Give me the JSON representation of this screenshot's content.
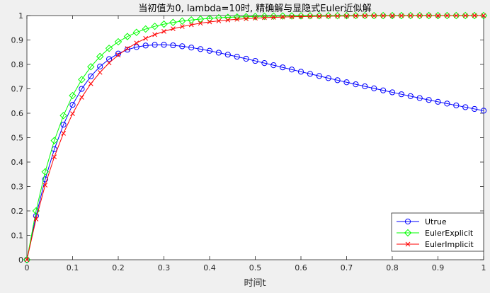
{
  "colors": {
    "figure_bg": "#f0f0f0",
    "axes_bg": "#ffffff",
    "axis_color": "#262626",
    "utrue": "#0000ff",
    "explicit": "#00ff00",
    "implicit": "#ff0000"
  },
  "chart_data": {
    "type": "line",
    "title": "当初值为0, lambda=10时, 精确解与显隐式Euler近似解",
    "xlabel": "时间t",
    "ylabel": "",
    "xlim": [
      0,
      1
    ],
    "ylim": [
      0,
      1
    ],
    "xticks": [
      0,
      0.1,
      0.2,
      0.3,
      0.4,
      0.5,
      0.6,
      0.7,
      0.8,
      0.9,
      1
    ],
    "xtick_labels": [
      "0",
      "0.1",
      "0.2",
      "0.3",
      "0.4",
      "0.5",
      "0.6",
      "0.7",
      "0.8",
      "0.9",
      "1"
    ],
    "yticks": [
      0,
      0.1,
      0.2,
      0.3,
      0.4,
      0.5,
      0.6,
      0.7,
      0.8,
      0.9,
      1
    ],
    "ytick_labels": [
      "0",
      "0.1",
      "0.2",
      "0.3",
      "0.4",
      "0.5",
      "0.6",
      "0.7",
      "0.8",
      "0.9",
      "1"
    ],
    "grid": false,
    "legend_position": "bottom-right",
    "x": [
      0,
      0.02,
      0.04,
      0.06,
      0.08,
      0.1,
      0.12,
      0.14,
      0.16,
      0.18,
      0.2,
      0.22,
      0.24,
      0.26,
      0.28,
      0.3,
      0.32,
      0.34,
      0.36,
      0.38,
      0.4,
      0.42,
      0.44,
      0.46,
      0.48,
      0.5,
      0.52,
      0.54,
      0.56,
      0.58,
      0.6,
      0.62,
      0.64,
      0.66,
      0.68,
      0.7,
      0.72,
      0.74,
      0.76,
      0.78,
      0.8,
      0.82,
      0.84,
      0.86,
      0.88,
      0.9,
      0.92,
      0.94,
      0.96,
      0.98,
      1
    ],
    "series": [
      {
        "name": "Utrue",
        "color": "#0000ff",
        "marker": "circle",
        "values": [
          0,
          0.1798,
          0.3293,
          0.4525,
          0.5531,
          0.6346,
          0.6998,
          0.7513,
          0.7913,
          0.8217,
          0.8442,
          0.8603,
          0.871,
          0.8773,
          0.8802,
          0.8803,
          0.8781,
          0.8743,
          0.869,
          0.8627,
          0.8557,
          0.848,
          0.84,
          0.8316,
          0.8231,
          0.8143,
          0.8055,
          0.7967,
          0.7878,
          0.7789,
          0.7701,
          0.7613,
          0.7526,
          0.7439,
          0.7353,
          0.7268,
          0.7184,
          0.7101,
          0.7019,
          0.6937,
          0.6857,
          0.6777,
          0.6699,
          0.6621,
          0.6545,
          0.6469,
          0.6395,
          0.6321,
          0.6248,
          0.6176,
          0.6105
        ]
      },
      {
        "name": "EulerExplicit",
        "color": "#00ff00",
        "marker": "diamond",
        "values": [
          0,
          0.2,
          0.36,
          0.488,
          0.5904,
          0.6723,
          0.7379,
          0.7903,
          0.8322,
          0.8658,
          0.8926,
          0.9141,
          0.9313,
          0.945,
          0.956,
          0.9648,
          0.9718,
          0.9775,
          0.982,
          0.9856,
          0.9885,
          0.9908,
          0.9926,
          0.9941,
          0.9953,
          0.9962,
          0.997,
          0.9976,
          0.9981,
          0.9985,
          0.9988,
          0.999,
          0.9992,
          0.9994,
          0.9995,
          0.9996,
          0.9997,
          0.9998,
          0.9998,
          0.9999,
          0.9999,
          0.9999,
          0.9999,
          0.9999,
          1.0,
          1.0,
          1.0,
          1.0,
          1.0,
          1.0,
          1.0
        ]
      },
      {
        "name": "EulerImplicit",
        "color": "#ff0000",
        "marker": "x",
        "values": [
          0,
          0.1667,
          0.3056,
          0.4213,
          0.5177,
          0.5981,
          0.6651,
          0.7209,
          0.7674,
          0.8062,
          0.8385,
          0.8654,
          0.8878,
          0.9065,
          0.9221,
          0.9351,
          0.9459,
          0.9549,
          0.9624,
          0.9687,
          0.9739,
          0.9783,
          0.9819,
          0.9849,
          0.9874,
          0.9895,
          0.9913,
          0.9927,
          0.9939,
          0.9949,
          0.9958,
          0.9965,
          0.9971,
          0.9976,
          0.998,
          0.9983,
          0.9986,
          0.9988,
          0.999,
          0.9992,
          0.9993,
          0.9994,
          0.9995,
          0.9996,
          0.9997,
          0.9997,
          0.9998,
          0.9998,
          0.9998,
          0.9999,
          0.9999
        ]
      }
    ]
  }
}
